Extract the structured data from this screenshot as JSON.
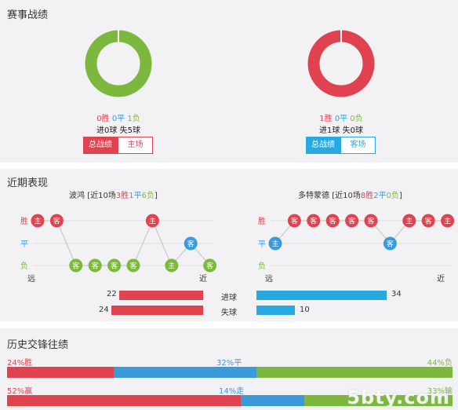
{
  "sections": {
    "record": "赛事战绩",
    "recent": "近期表现",
    "history": "历史交锋往绩"
  },
  "colors": {
    "red": "#e0434f",
    "blue": "#3b9ad9",
    "green": "#7cb83e",
    "cyan": "#29a9e1"
  },
  "home": {
    "win": "0胜",
    "draw": "0平",
    "loss": "1负",
    "goals": "进0球",
    "conceded": "失5球",
    "win_fraction": 0,
    "draw_fraction": 0,
    "loss_fraction": 1,
    "tab_total": "总战绩",
    "tab_venue": "主场"
  },
  "away": {
    "win": "1胜",
    "draw": "0平",
    "loss": "0负",
    "goals": "进1球",
    "conceded": "失0球",
    "win_fraction": 1,
    "draw_fraction": 0,
    "loss_fraction": 0,
    "tab_total": "总战绩",
    "tab_venue": "客场"
  },
  "form": {
    "result_labels": [
      "胜",
      "平",
      "负"
    ],
    "far": "远",
    "near": "近",
    "home_team": {
      "name": "波鸿",
      "summary_prefix": "[近10场",
      "wins": "3胜",
      "draws": "1平",
      "losses": "6负",
      "summary_suffix": "]",
      "matches": [
        {
          "result": "W",
          "venue": "主"
        },
        {
          "result": "W",
          "venue": "客"
        },
        {
          "result": "L",
          "venue": "客"
        },
        {
          "result": "L",
          "venue": "客"
        },
        {
          "result": "L",
          "venue": "客"
        },
        {
          "result": "L",
          "venue": "客"
        },
        {
          "result": "W",
          "venue": "主"
        },
        {
          "result": "L",
          "venue": "主"
        },
        {
          "result": "D",
          "venue": "客"
        },
        {
          "result": "L",
          "venue": "客"
        }
      ]
    },
    "away_team": {
      "name": "多特蒙德",
      "summary_prefix": "[近10场",
      "wins": "8胜",
      "draws": "2平",
      "losses": "0负",
      "summary_suffix": "]",
      "matches": [
        {
          "result": "D",
          "venue": "主"
        },
        {
          "result": "W",
          "venue": "客"
        },
        {
          "result": "W",
          "venue": "客"
        },
        {
          "result": "W",
          "venue": "客"
        },
        {
          "result": "W",
          "venue": "客"
        },
        {
          "result": "W",
          "venue": "客"
        },
        {
          "result": "D",
          "venue": "客"
        },
        {
          "result": "W",
          "venue": "主"
        },
        {
          "result": "W",
          "venue": "客"
        },
        {
          "result": "W",
          "venue": "主"
        }
      ]
    }
  },
  "goals_compare": {
    "max": 34,
    "rows": [
      {
        "label": "进球",
        "home": 22,
        "away": 34
      },
      {
        "label": "失球",
        "home": 24,
        "away": 10
      }
    ]
  },
  "history": {
    "result_bar": [
      {
        "label": "24%胜",
        "value": 24
      },
      {
        "label": "32%平",
        "value": 32
      },
      {
        "label": "44%负",
        "value": 44
      }
    ],
    "handicap_bar": [
      {
        "label": "52%赢",
        "value": 52
      },
      {
        "label": "14%走",
        "value": 14
      },
      {
        "label": "33%输",
        "value": 33
      }
    ]
  },
  "watermark": "5bty.com"
}
